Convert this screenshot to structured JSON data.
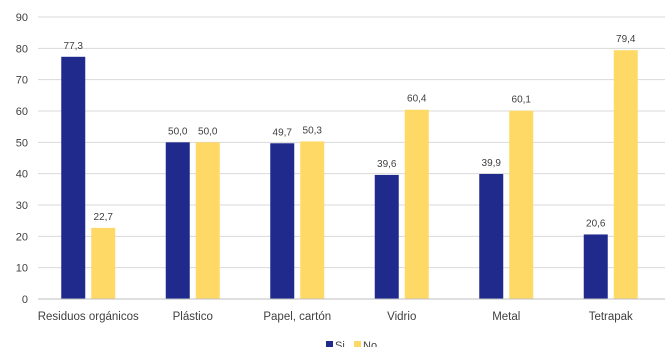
{
  "chart_data": {
    "type": "bar",
    "title": "",
    "xlabel": "",
    "ylabel": "",
    "ylim": [
      0,
      90
    ],
    "yticks": [
      0,
      10,
      20,
      30,
      40,
      50,
      60,
      70,
      80,
      90
    ],
    "grid": true,
    "legend": "bottom",
    "categories": [
      "Residuos orgánicos",
      "Plástico",
      "Papel, cartón",
      "Vidrio",
      "Metal",
      "Tetrapak"
    ],
    "series": [
      {
        "name": "Si",
        "color": "#1f2a8c",
        "values": [
          77.3,
          50.0,
          49.7,
          39.6,
          39.9,
          20.6
        ],
        "labels": [
          "77,3",
          "50,0",
          "49,7",
          "39,6",
          "39,9",
          "20,6"
        ]
      },
      {
        "name": "No",
        "color": "#ffd966",
        "values": [
          22.7,
          50.0,
          50.3,
          60.4,
          60.1,
          79.4
        ],
        "labels": [
          "22,7",
          "50,0",
          "50,3",
          "60,4",
          "60,1",
          "79,4"
        ]
      }
    ]
  }
}
